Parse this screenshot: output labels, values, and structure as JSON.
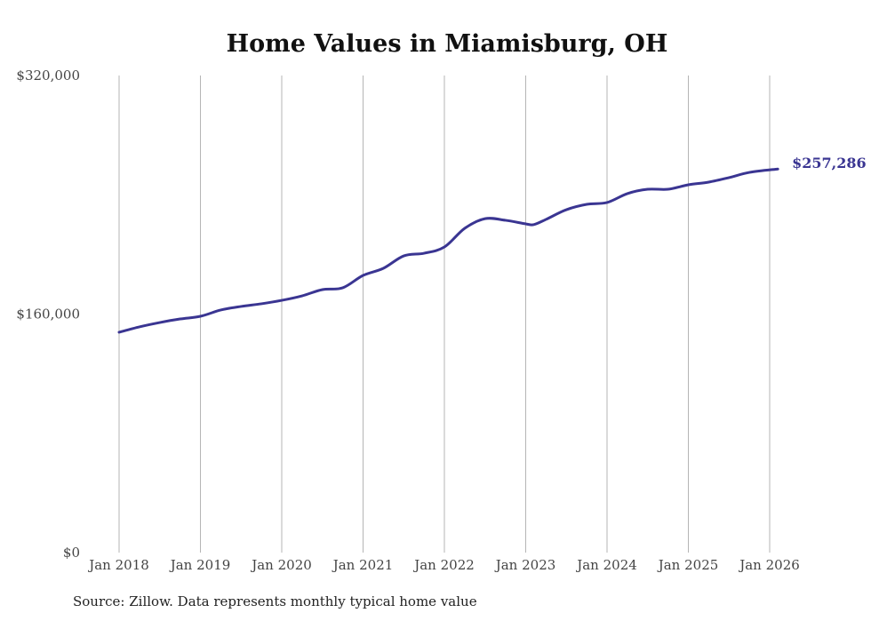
{
  "chart_data": {
    "type": "line",
    "title": "Home Values in Miamisburg, OH",
    "xlabel": "",
    "ylabel": "",
    "ylim": [
      0,
      320000
    ],
    "xlim": [
      2018.0,
      2026.1
    ],
    "y_ticks": [
      0,
      160000,
      320000
    ],
    "y_tick_labels": [
      "$0",
      "$160,000",
      "$320,000"
    ],
    "x_ticks": [
      2018,
      2019,
      2020,
      2021,
      2022,
      2023,
      2024,
      2025,
      2026
    ],
    "x_tick_labels": [
      "Jan 2018",
      "Jan 2019",
      "Jan 2020",
      "Jan 2021",
      "Jan 2022",
      "Jan 2023",
      "Jan 2024",
      "Jan 2025",
      "Jan 2026"
    ],
    "grid": "vertical",
    "series": [
      {
        "name": "Typical home value",
        "color": "#3a3592",
        "x": [
          2018.0,
          2018.25,
          2018.5,
          2018.75,
          2019.0,
          2019.25,
          2019.5,
          2019.75,
          2020.0,
          2020.25,
          2020.5,
          2020.75,
          2021.0,
          2021.25,
          2021.5,
          2021.75,
          2022.0,
          2022.25,
          2022.5,
          2022.75,
          2023.0,
          2023.1,
          2023.25,
          2023.5,
          2023.75,
          2024.0,
          2024.25,
          2024.5,
          2024.75,
          2025.0,
          2025.25,
          2025.5,
          2025.75,
          2026.1
        ],
        "values": [
          147800,
          151400,
          154300,
          156700,
          158500,
          162700,
          165100,
          166900,
          169200,
          172200,
          176400,
          177600,
          185900,
          190700,
          199000,
          200800,
          205000,
          217500,
          224000,
          222900,
          220500,
          220000,
          223500,
          230000,
          233600,
          234800,
          240800,
          243700,
          243700,
          246700,
          248500,
          251500,
          255000,
          257286
        ]
      }
    ],
    "end_label": "$257,286"
  },
  "source": "Source: Zillow. Data represents monthly typical home value"
}
